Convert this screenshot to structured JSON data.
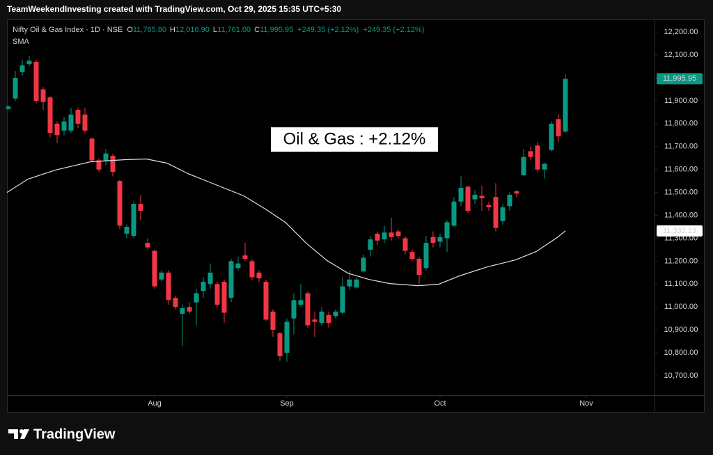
{
  "credit": "TeamWeekendInvesting created with TradingView.com, Oct 29, 2025 15:35 UTC+5:30",
  "brand": "TradingView",
  "chart_data": {
    "type": "candlestick",
    "title": "Nifty Oil & Gas Index · 1D · NSE",
    "ohlc_legend": [
      {
        "key": "O",
        "value": "11,765.80"
      },
      {
        "key": "H",
        "value": "12,016.90"
      },
      {
        "key": "L",
        "value": "11,761.00"
      },
      {
        "key": "C",
        "value": "11,995.95"
      }
    ],
    "change": [
      "+249.35 (+2.12%)",
      "+249.35 (+2.12%)"
    ],
    "annotation": "Oil & Gas : +2.12%",
    "up_color": "#089981",
    "down_color": "#f23645",
    "open": [
      11865,
      11910,
      12025,
      12060,
      12070,
      11950,
      11915,
      11800,
      11770,
      11770,
      11860,
      11840,
      11735,
      11640,
      11640,
      11660,
      11550,
      11320,
      11310,
      11450,
      11280,
      11245,
      11120,
      11150,
      11040,
      10970,
      11000,
      11020,
      11070,
      11100,
      11100,
      11110,
      11040,
      11170,
      11225,
      11200,
      11150,
      11110,
      10980,
      10885,
      10800,
      10950,
      11010,
      11060,
      10945,
      10930,
      10965,
      10960,
      10975,
      11090,
      11085,
      11155,
      11250,
      11320,
      11295,
      11325,
      11330,
      11300,
      11240,
      11210,
      11170,
      11305,
      11285,
      11300,
      11355,
      11460,
      11525,
      11470,
      11485,
      11445,
      11480,
      11375,
      11440,
      11505,
      11575,
      11680,
      11705,
      11600,
      11685,
      11820,
      11765.8
    ],
    "high": [
      11880,
      12030,
      12080,
      12095,
      12080,
      11960,
      11920,
      11810,
      11830,
      11870,
      11870,
      11870,
      11740,
      11650,
      11690,
      11670,
      11555,
      11360,
      11460,
      11490,
      11300,
      11250,
      11160,
      11160,
      11050,
      11010,
      11020,
      11080,
      11130,
      11190,
      11110,
      11120,
      11210,
      11220,
      11280,
      11210,
      11160,
      11120,
      10990,
      10890,
      10950,
      11060,
      11100,
      11070,
      10980,
      11000,
      10980,
      10990,
      11130,
      11160,
      11130,
      11230,
      11310,
      11330,
      11355,
      11390,
      11340,
      11310,
      11250,
      11220,
      11310,
      11330,
      11320,
      11380,
      11480,
      11570,
      11530,
      11510,
      11530,
      11460,
      11540,
      11450,
      11500,
      11510,
      11690,
      11700,
      11720,
      11630,
      11810,
      11840,
      12016.9
    ],
    "low": [
      11860,
      11900,
      12010,
      12050,
      11890,
      11860,
      11740,
      11715,
      11750,
      11760,
      11780,
      11760,
      11630,
      11590,
      11620,
      11570,
      11340,
      11300,
      11300,
      11380,
      11250,
      11080,
      11110,
      11010,
      10990,
      10830,
      10970,
      10920,
      11040,
      11080,
      11000,
      10930,
      11020,
      11160,
      11200,
      11120,
      11110,
      10940,
      10870,
      10765,
      10760,
      10880,
      11000,
      10910,
      10870,
      10920,
      10910,
      10950,
      10970,
      11075,
      11080,
      11150,
      11220,
      11270,
      11280,
      11290,
      11300,
      11230,
      11200,
      11100,
      11160,
      11260,
      11260,
      11240,
      11350,
      11440,
      11410,
      11450,
      11420,
      11420,
      11330,
      11360,
      11420,
      11480,
      11570,
      11640,
      11590,
      11560,
      11680,
      11720,
      11761.0
    ],
    "close": [
      11875,
      12000,
      12055,
      12075,
      11900,
      11895,
      11760,
      11750,
      11810,
      11840,
      11800,
      11770,
      11640,
      11600,
      11670,
      11590,
      11355,
      11350,
      11450,
      11420,
      11260,
      11090,
      11150,
      11030,
      11000,
      10995,
      10980,
      11060,
      11110,
      11150,
      11010,
      10975,
      11200,
      11190,
      11210,
      11130,
      11125,
      10945,
      10900,
      10785,
      10935,
      11030,
      11030,
      10920,
      10935,
      10980,
      10930,
      10980,
      11090,
      11120,
      11120,
      11215,
      11295,
      11290,
      11325,
      11305,
      11310,
      11245,
      11210,
      11140,
      11280,
      11280,
      11305,
      11370,
      11460,
      11520,
      11420,
      11490,
      11475,
      11435,
      11345,
      11435,
      11490,
      11495,
      11655,
      11655,
      11600,
      11625,
      11800,
      11745,
      11995.95
    ],
    "series": [
      {
        "name": "SMA",
        "color": "#e0e0e0",
        "x": [
          -0.2,
          2.8,
          6.8,
          11.8,
          16.8,
          19.8,
          22.8,
          25.8,
          28.8,
          33.8,
          36.8,
          39.8,
          42.8,
          45.8,
          48.8,
          51.8,
          54.8,
          58.8,
          61.8,
          64.8,
          68.8,
          72.8,
          75.8,
          78.8,
          80
        ],
        "values": [
          11500,
          11558,
          11598,
          11634,
          11643,
          11646,
          11628,
          11582,
          11546,
          11485,
          11430,
          11369,
          11278,
          11202,
          11147,
          11120,
          11102,
          11093,
          11099,
          11136,
          11175,
          11205,
          11242,
          11303,
          11332.13
        ]
      }
    ],
    "price_labels": [
      {
        "value": 11995.95,
        "label": "11,995.95",
        "color": "#089981"
      },
      {
        "value": 11332.13,
        "label": "11,332.13",
        "color": "#ffffff"
      }
    ],
    "xlim": [
      -0.2,
      92.8
    ],
    "xticks": [
      {
        "value": 21,
        "label": "Aug"
      },
      {
        "value": 40,
        "label": "Sep"
      },
      {
        "value": 62,
        "label": "Oct"
      },
      {
        "value": 83,
        "label": "Nov"
      }
    ],
    "ylim": [
      10615,
      12252
    ],
    "yticks": [
      {
        "value": 10700,
        "label": "10,700.00"
      },
      {
        "value": 10800,
        "label": "10,800.00"
      },
      {
        "value": 10900,
        "label": "10,900.00"
      },
      {
        "value": 11000,
        "label": "11,000.00"
      },
      {
        "value": 11100,
        "label": "11,100.00"
      },
      {
        "value": 11200,
        "label": "11,200.00"
      },
      {
        "value": 11300,
        "label": "11,300.00"
      },
      {
        "value": 11400,
        "label": "11,400.00"
      },
      {
        "value": 11500,
        "label": "11,500.00"
      },
      {
        "value": 11600,
        "label": "11,600.00"
      },
      {
        "value": 11700,
        "label": "11,700.00"
      },
      {
        "value": 11800,
        "label": "11,800.00"
      },
      {
        "value": 11900,
        "label": "11,900.00"
      },
      {
        "value": 12000,
        "label": "12,000.00"
      },
      {
        "value": 12100,
        "label": "12,100.00"
      },
      {
        "value": 12200,
        "label": "12,200.00"
      }
    ]
  }
}
